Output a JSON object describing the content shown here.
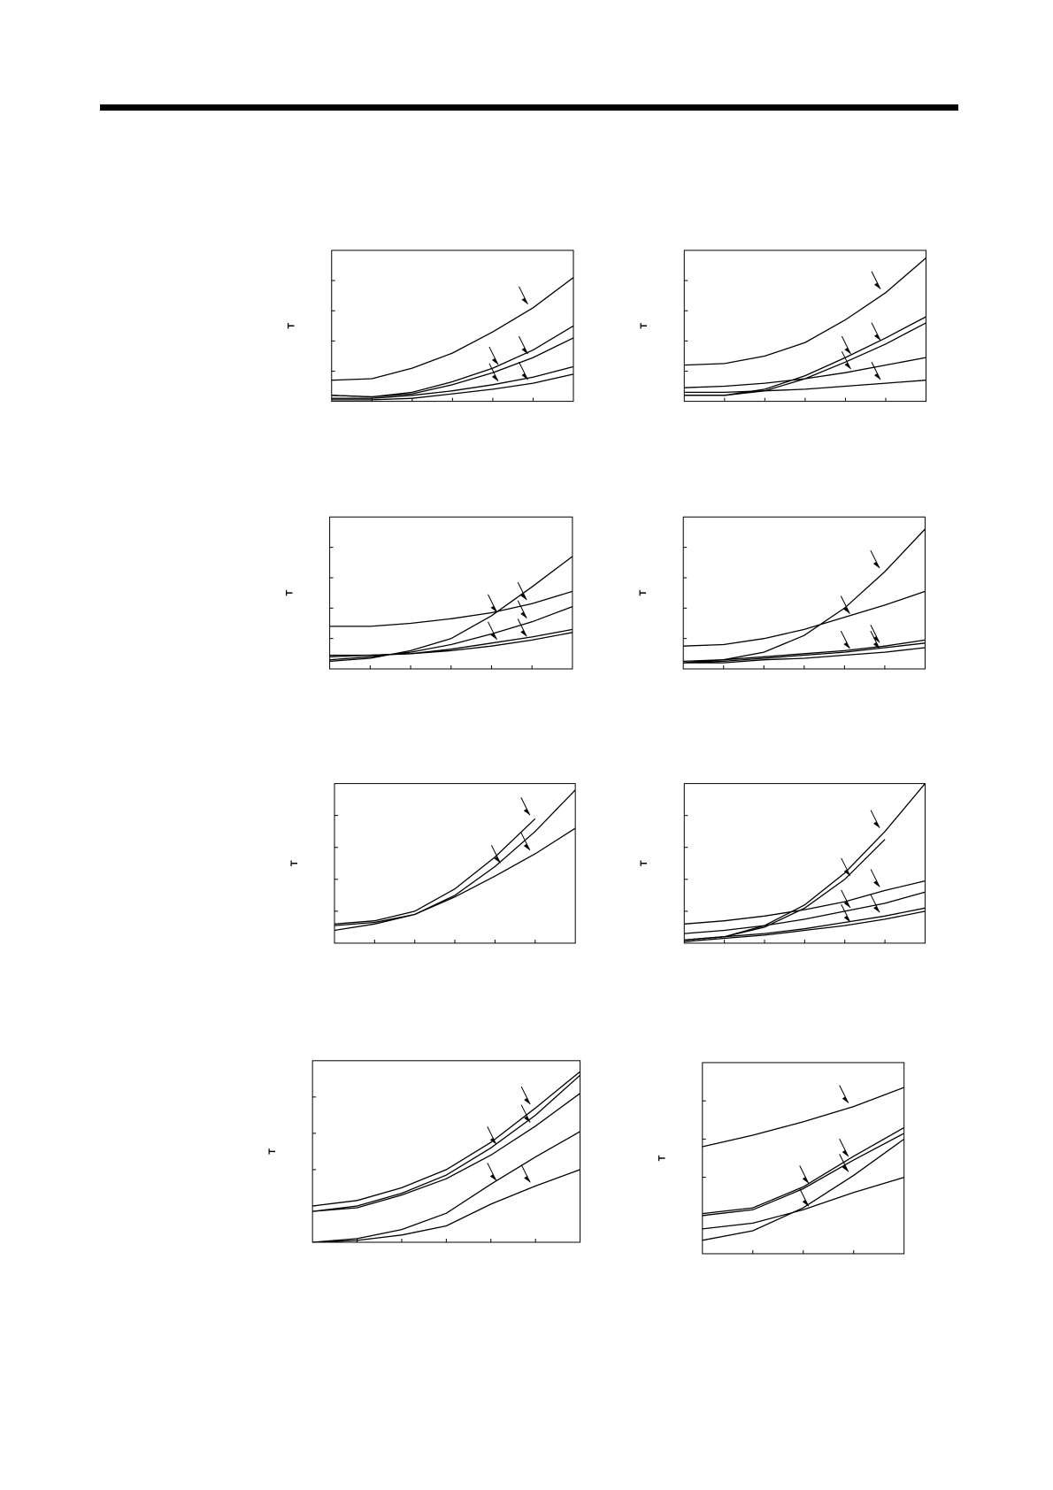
{
  "chart_data": [
    {
      "type": "line",
      "y_label": "T",
      "xlim": [
        0,
        6
      ],
      "ylim": [
        0,
        5
      ],
      "x": [
        0,
        1,
        2,
        3,
        4,
        5,
        6
      ],
      "series": [
        {
          "color": "#000000",
          "values": [
            0.7,
            0.75,
            1.1,
            1.6,
            2.3,
            3.1,
            4.1
          ]
        },
        {
          "color": "#000000",
          "values": [
            0.2,
            0.15,
            0.3,
            0.65,
            1.1,
            1.7,
            2.5
          ]
        },
        {
          "color": "#000000",
          "values": [
            0.2,
            0.15,
            0.25,
            0.55,
            0.95,
            1.45,
            2.1
          ]
        },
        {
          "color": "#000000",
          "values": [
            0.1,
            0.1,
            0.2,
            0.35,
            0.55,
            0.8,
            1.15
          ]
        },
        {
          "color": "#000000",
          "values": [
            0.05,
            0.05,
            0.1,
            0.25,
            0.4,
            0.6,
            0.9
          ]
        }
      ]
    },
    {
      "type": "line",
      "y_label": "T",
      "xlim": [
        0,
        6
      ],
      "ylim": [
        0,
        5
      ],
      "x": [
        0,
        1,
        2,
        3,
        4,
        5,
        6
      ],
      "series": [
        {
          "color": "#000000",
          "values": [
            1.2,
            1.25,
            1.5,
            1.95,
            2.7,
            3.6,
            4.75
          ]
        },
        {
          "color": "#000000",
          "values": [
            0.2,
            0.2,
            0.4,
            0.85,
            1.45,
            2.1,
            2.8
          ]
        },
        {
          "color": "#000000",
          "values": [
            0.2,
            0.2,
            0.35,
            0.75,
            1.3,
            1.9,
            2.6
          ]
        },
        {
          "color": "#000000",
          "values": [
            0.45,
            0.5,
            0.6,
            0.75,
            0.95,
            1.2,
            1.45
          ]
        },
        {
          "color": "#000000",
          "values": [
            0.3,
            0.3,
            0.35,
            0.4,
            0.5,
            0.6,
            0.7
          ]
        }
      ]
    },
    {
      "type": "line",
      "y_label": "T",
      "xlim": [
        0,
        6
      ],
      "ylim": [
        0,
        5
      ],
      "x": [
        0,
        1,
        2,
        3,
        4,
        5,
        6
      ],
      "series": [
        {
          "color": "#000000",
          "values": [
            1.4,
            1.4,
            1.5,
            1.65,
            1.85,
            2.15,
            2.55
          ]
        },
        {
          "color": "#000000",
          "values": [
            0.25,
            0.35,
            0.6,
            1.0,
            1.75,
            2.7,
            3.7
          ]
        },
        {
          "color": "#000000",
          "values": [
            0.3,
            0.4,
            0.55,
            0.8,
            1.15,
            1.55,
            2.05
          ]
        },
        {
          "color": "#000000",
          "values": [
            0.4,
            0.45,
            0.5,
            0.65,
            0.85,
            1.05,
            1.3
          ]
        },
        {
          "color": "#000000",
          "values": [
            0.45,
            0.45,
            0.5,
            0.6,
            0.75,
            0.95,
            1.2
          ]
        }
      ]
    },
    {
      "type": "line",
      "y_label": "T",
      "xlim": [
        0,
        6
      ],
      "ylim": [
        0,
        5
      ],
      "x": [
        0,
        1,
        2,
        3,
        4,
        5,
        6
      ],
      "series": [
        {
          "color": "#000000",
          "values": [
            0.2,
            0.3,
            0.55,
            1.1,
            2.0,
            3.2,
            4.6
          ]
        },
        {
          "color": "#000000",
          "values": [
            0.75,
            0.8,
            1.0,
            1.3,
            1.7,
            2.1,
            2.55
          ]
        },
        {
          "color": "#000000",
          "values": [
            0.25,
            0.3,
            0.4,
            0.5,
            0.6,
            0.75,
            0.95
          ]
        },
        {
          "color": "#000000",
          "values": [
            0.2,
            0.25,
            0.35,
            0.45,
            0.55,
            0.7,
            0.85
          ]
        },
        {
          "color": "#000000",
          "values": [
            0.2,
            0.2,
            0.3,
            0.35,
            0.45,
            0.55,
            0.7
          ]
        }
      ]
    },
    {
      "type": "line",
      "y_label": "T",
      "xlim": [
        0,
        6
      ],
      "ylim": [
        0,
        5
      ],
      "x": [
        0,
        1,
        2,
        3,
        4,
        5,
        6
      ],
      "series": [
        {
          "color": "#000000",
          "values": [
            0.6,
            0.7,
            1.0,
            1.7,
            2.7,
            3.9,
            null
          ]
        },
        {
          "color": "#000000",
          "values": [
            0.55,
            0.65,
            0.9,
            1.5,
            2.4,
            3.5,
            4.8
          ]
        },
        {
          "color": "#000000",
          "values": [
            0.4,
            0.6,
            0.9,
            1.45,
            2.1,
            2.8,
            3.6
          ]
        }
      ]
    },
    {
      "type": "line",
      "y_label": "T",
      "xlim": [
        0,
        6
      ],
      "ylim": [
        0,
        5
      ],
      "x": [
        0,
        1,
        2,
        3,
        4,
        5,
        6
      ],
      "series": [
        {
          "color": "#000000",
          "values": [
            0.1,
            0.2,
            0.55,
            1.2,
            2.2,
            3.5,
            5.0
          ]
        },
        {
          "color": "#000000",
          "values": [
            0.1,
            0.2,
            0.5,
            1.1,
            2.0,
            3.25,
            null
          ]
        },
        {
          "color": "#000000",
          "values": [
            0.6,
            0.7,
            0.85,
            1.05,
            1.3,
            1.65,
            1.95
          ]
        },
        {
          "color": "#000000",
          "values": [
            0.3,
            0.4,
            0.55,
            0.75,
            1.0,
            1.25,
            1.6
          ]
        },
        {
          "color": "#000000",
          "values": [
            0.1,
            0.2,
            0.3,
            0.45,
            0.65,
            0.85,
            1.1
          ]
        },
        {
          "color": "#000000",
          "values": [
            0.05,
            0.15,
            0.25,
            0.4,
            0.55,
            0.75,
            1.0
          ]
        }
      ]
    },
    {
      "type": "line",
      "y_label": "T",
      "xlim": [
        0,
        6
      ],
      "ylim": [
        0,
        5
      ],
      "x": [
        0,
        1,
        2,
        3,
        4,
        5,
        6
      ],
      "series": [
        {
          "color": "#000000",
          "values": [
            1.0,
            1.15,
            1.5,
            2.0,
            2.75,
            3.7,
            4.7
          ]
        },
        {
          "color": "#000000",
          "values": [
            0.85,
            1.0,
            1.35,
            1.85,
            2.6,
            3.5,
            4.6
          ]
        },
        {
          "color": "#000000",
          "values": [
            0.85,
            0.95,
            1.3,
            1.75,
            2.4,
            3.2,
            4.1
          ]
        },
        {
          "color": "#000000",
          "values": [
            0,
            0.1,
            0.35,
            0.8,
            1.6,
            2.35,
            3.05
          ]
        },
        {
          "color": "#000000",
          "values": [
            0,
            0.05,
            0.2,
            0.45,
            1.05,
            1.55,
            2.0
          ]
        }
      ]
    },
    {
      "type": "line",
      "y_label": "T",
      "xlim": [
        0,
        4
      ],
      "ylim": [
        0,
        5
      ],
      "x": [
        0,
        1,
        2,
        3,
        4
      ],
      "series": [
        {
          "color": "#000000",
          "values": [
            2.8,
            3.1,
            3.45,
            3.85,
            4.35
          ]
        },
        {
          "color": "#000000",
          "values": [
            1.05,
            1.2,
            1.75,
            2.55,
            3.3
          ]
        },
        {
          "color": "#000000",
          "values": [
            1.0,
            1.15,
            1.7,
            2.45,
            3.15
          ]
        },
        {
          "color": "#000000",
          "values": [
            0.65,
            0.8,
            1.15,
            1.6,
            2.0
          ]
        },
        {
          "color": "#000000",
          "values": [
            0.35,
            0.6,
            1.2,
            2.05,
            3.0
          ]
        }
      ]
    }
  ]
}
